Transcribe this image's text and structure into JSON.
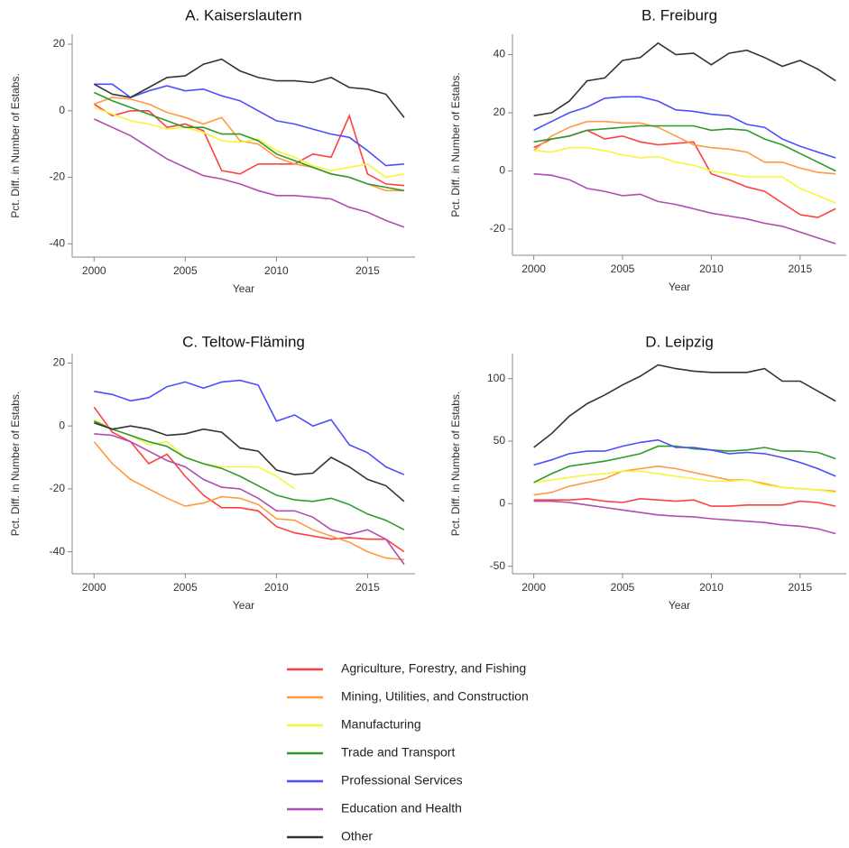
{
  "legend": [
    {
      "name": "Agriculture, Forestry, and Fishing",
      "color": "#ff4040"
    },
    {
      "name": "Mining, Utilities, and Construction",
      "color": "#ff9a40"
    },
    {
      "name": "Manufacturing",
      "color": "#f5f53a"
    },
    {
      "name": "Trade and Transport",
      "color": "#2e9a2e"
    },
    {
      "name": "Professional Services",
      "color": "#4d4dff"
    },
    {
      "name": "Education and Health",
      "color": "#b04db0"
    },
    {
      "name": "Other",
      "color": "#333333"
    }
  ],
  "chart_data": [
    {
      "type": "line",
      "title": "A. Kaiserslautern",
      "x_label": "Year",
      "y_label": "Pct. Diff. in Number of Estabs.",
      "x": [
        2000,
        2001,
        2002,
        2003,
        2004,
        2005,
        2006,
        2007,
        2008,
        2009,
        2010,
        2011,
        2012,
        2013,
        2014,
        2015,
        2016,
        2017
      ],
      "xlim": [
        1998.8,
        2017.6
      ],
      "xticks": [
        2000,
        2005,
        2010,
        2015
      ],
      "ylim": [
        -44,
        23
      ],
      "yticks": [
        -40,
        -20,
        0,
        20
      ],
      "series": [
        {
          "values": [
            2,
            -1.5,
            0,
            0,
            -5,
            -4,
            -6,
            -18,
            -19,
            -16,
            -16,
            -16,
            -13,
            -14,
            -1.5,
            -19,
            -22,
            -22.5
          ]
        },
        {
          "values": [
            2,
            4,
            3.5,
            2,
            -0.5,
            -2,
            -4,
            -2,
            -9,
            -10,
            -14,
            -16,
            -17,
            -19,
            -20,
            -22,
            -24,
            -24
          ]
        },
        {
          "values": [
            1,
            -1,
            -3,
            -4,
            -5.5,
            -5,
            -6.5,
            -9,
            -9.5,
            -8.5,
            -12,
            -14,
            -16.5,
            -18,
            -17,
            -16,
            -20,
            -19
          ]
        },
        {
          "values": [
            5.5,
            3,
            1,
            -1,
            -3,
            -5,
            -5,
            -7,
            -7,
            -9,
            -13,
            -15,
            -17,
            -19,
            -20,
            -22,
            -23,
            -24
          ]
        },
        {
          "values": [
            8,
            8,
            4,
            6,
            7.5,
            6,
            6.5,
            4.5,
            3,
            0,
            -3,
            -4,
            -5.5,
            -7,
            -8,
            -12,
            -16.5,
            -16
          ]
        },
        {
          "values": [
            -2.5,
            -5,
            -7.5,
            -11,
            -14.5,
            -17,
            -19.5,
            -20.5,
            -22,
            -24,
            -25.5,
            -25.5,
            -26,
            -26.5,
            -29,
            -30.5,
            -33,
            -35
          ]
        },
        {
          "values": [
            8,
            5,
            4,
            7,
            10,
            10.5,
            14,
            15.5,
            12,
            10,
            9,
            9,
            8.5,
            10,
            7,
            6.5,
            5,
            -2
          ]
        }
      ]
    },
    {
      "type": "line",
      "title": "B. Freiburg",
      "x_label": "Year",
      "y_label": "Pct. Diff. in Number of Estabs.",
      "x": [
        2000,
        2001,
        2002,
        2003,
        2004,
        2005,
        2006,
        2007,
        2008,
        2009,
        2010,
        2011,
        2012,
        2013,
        2014,
        2015,
        2016,
        2017
      ],
      "xlim": [
        1998.8,
        2017.6
      ],
      "xticks": [
        2000,
        2005,
        2010,
        2015
      ],
      "ylim": [
        -29,
        47
      ],
      "yticks": [
        -20,
        0,
        20,
        40
      ],
      "series": [
        {
          "values": [
            8,
            11,
            12,
            14,
            11,
            12,
            10,
            9,
            9.5,
            10,
            -1,
            -3,
            -5.5,
            -7,
            -11,
            -15,
            -16,
            -13
          ]
        },
        {
          "values": [
            7,
            12,
            15,
            17,
            17,
            16.5,
            16.5,
            15,
            12,
            9,
            8,
            7.5,
            6.5,
            3,
            3,
            1,
            -0.5,
            -1
          ]
        },
        {
          "values": [
            7,
            6.5,
            8,
            8,
            7,
            5.5,
            4.5,
            5,
            3,
            2,
            0,
            -1,
            -2,
            -2,
            -2,
            -6,
            -8.5,
            -11
          ]
        },
        {
          "values": [
            10,
            11,
            12,
            14,
            14.5,
            15,
            15.5,
            15.5,
            15.5,
            15.5,
            14,
            14.5,
            14,
            11,
            9,
            6,
            3,
            0
          ]
        },
        {
          "values": [
            14,
            17,
            20,
            22,
            25,
            25.5,
            25.5,
            24,
            21,
            20.5,
            19.5,
            19,
            16,
            15,
            11,
            8.5,
            6.5,
            4.5
          ]
        },
        {
          "values": [
            -1,
            -1.5,
            -3,
            -6,
            -7,
            -8.5,
            -8,
            -10.5,
            -11.5,
            -13,
            -14.5,
            -15.5,
            -16.5,
            -18,
            -19,
            -21,
            -23,
            -25
          ]
        },
        {
          "values": [
            19,
            20,
            24,
            31,
            32,
            38,
            39,
            44,
            40,
            40.5,
            36.5,
            40.5,
            41.5,
            39,
            36,
            38,
            35,
            31
          ]
        }
      ]
    },
    {
      "type": "line",
      "title": "C. Teltow-Fläming",
      "x_label": "Year",
      "y_label": "Pct. Diff. in Number of Estabs.",
      "x": [
        2000,
        2001,
        2002,
        2003,
        2004,
        2005,
        2006,
        2007,
        2008,
        2009,
        2010,
        2011,
        2012,
        2013,
        2014,
        2015,
        2016,
        2017
      ],
      "xlim": [
        1998.8,
        2017.6
      ],
      "xticks": [
        2000,
        2005,
        2010,
        2015
      ],
      "ylim": [
        -47,
        23
      ],
      "yticks": [
        -40,
        -20,
        0,
        20
      ],
      "series": [
        {
          "values": [
            6,
            -2,
            -5,
            -12,
            -9,
            -16,
            -22,
            -26,
            -26,
            -27,
            -32,
            -34,
            -35,
            -36,
            -35.5,
            -36,
            -36,
            -40
          ]
        },
        {
          "values": [
            -5,
            -12,
            -17,
            -20,
            -23,
            -25.5,
            -24.5,
            -22.5,
            -23,
            -25,
            -29.5,
            -30,
            -33,
            -35,
            -37,
            -40,
            -42,
            -42.5
          ]
        },
        {
          "values": [
            2,
            -1,
            -3,
            -6,
            -5,
            -10,
            -12,
            -13,
            -13,
            -13,
            -16,
            -20,
            null,
            null,
            null,
            null,
            null,
            null
          ]
        },
        {
          "values": [
            1.5,
            -1,
            -3,
            -5,
            -6.5,
            -10,
            -12,
            -13.5,
            -16,
            -19,
            -22,
            -23.5,
            -24,
            -23,
            -25,
            -28,
            -30,
            -33
          ]
        },
        {
          "values": [
            11,
            10,
            8,
            9,
            12.5,
            14,
            12,
            14,
            14.5,
            13,
            1.5,
            3.5,
            0,
            2,
            -6,
            -8.5,
            -13,
            -15.5
          ]
        },
        {
          "values": [
            -2.5,
            -3,
            -5,
            -8,
            -11,
            -13,
            -17,
            -19.5,
            -20,
            -23,
            -27,
            -27,
            -29,
            -33,
            -34.5,
            -33,
            -36,
            -44
          ]
        },
        {
          "values": [
            1,
            -1,
            0,
            -1,
            -3,
            -2.5,
            -1,
            -2,
            -7,
            -8,
            -14,
            -15.5,
            -15,
            -10,
            -13,
            -17,
            -19,
            -24
          ]
        }
      ]
    },
    {
      "type": "line",
      "title": "D. Leipzig",
      "x_label": "Year",
      "y_label": "Pct. Diff. in Number of Estabs.",
      "x": [
        2000,
        2001,
        2002,
        2003,
        2004,
        2005,
        2006,
        2007,
        2008,
        2009,
        2010,
        2011,
        2012,
        2013,
        2014,
        2015,
        2016,
        2017
      ],
      "xlim": [
        1998.8,
        2017.6
      ],
      "xticks": [
        2000,
        2005,
        2010,
        2015
      ],
      "ylim": [
        -56,
        120
      ],
      "yticks": [
        -50,
        0,
        50,
        100
      ],
      "series": [
        {
          "values": [
            3,
            3,
            3,
            4,
            2,
            1,
            4,
            3,
            2,
            3,
            -2,
            -2,
            -1,
            -1,
            -1,
            2,
            1,
            -2
          ]
        },
        {
          "values": [
            7,
            9,
            14,
            17,
            20,
            26,
            28,
            30,
            28,
            25,
            22,
            19,
            19,
            16,
            13,
            12,
            11,
            10
          ]
        },
        {
          "values": [
            17,
            19,
            21,
            23,
            24,
            26,
            26,
            24,
            22,
            20,
            18,
            18,
            19,
            15,
            13,
            12,
            11,
            9
          ]
        },
        {
          "values": [
            17,
            24,
            30,
            32,
            34,
            37,
            40,
            46,
            46,
            44,
            43,
            42,
            43,
            45,
            42,
            42,
            41,
            36
          ]
        },
        {
          "values": [
            31,
            35,
            40,
            42,
            42,
            46,
            49,
            51,
            45,
            45,
            43,
            40,
            41,
            40,
            37,
            33,
            28,
            22
          ]
        },
        {
          "values": [
            2,
            2,
            1,
            -1,
            -3,
            -5,
            -7,
            -9,
            -10,
            -10.5,
            -12,
            -13,
            -14,
            -15,
            -17,
            -18,
            -20,
            -24
          ]
        },
        {
          "values": [
            45,
            56,
            70,
            80,
            87,
            95,
            102,
            111,
            108,
            106,
            105,
            105,
            105,
            108,
            98,
            98,
            90,
            82
          ]
        }
      ]
    }
  ]
}
